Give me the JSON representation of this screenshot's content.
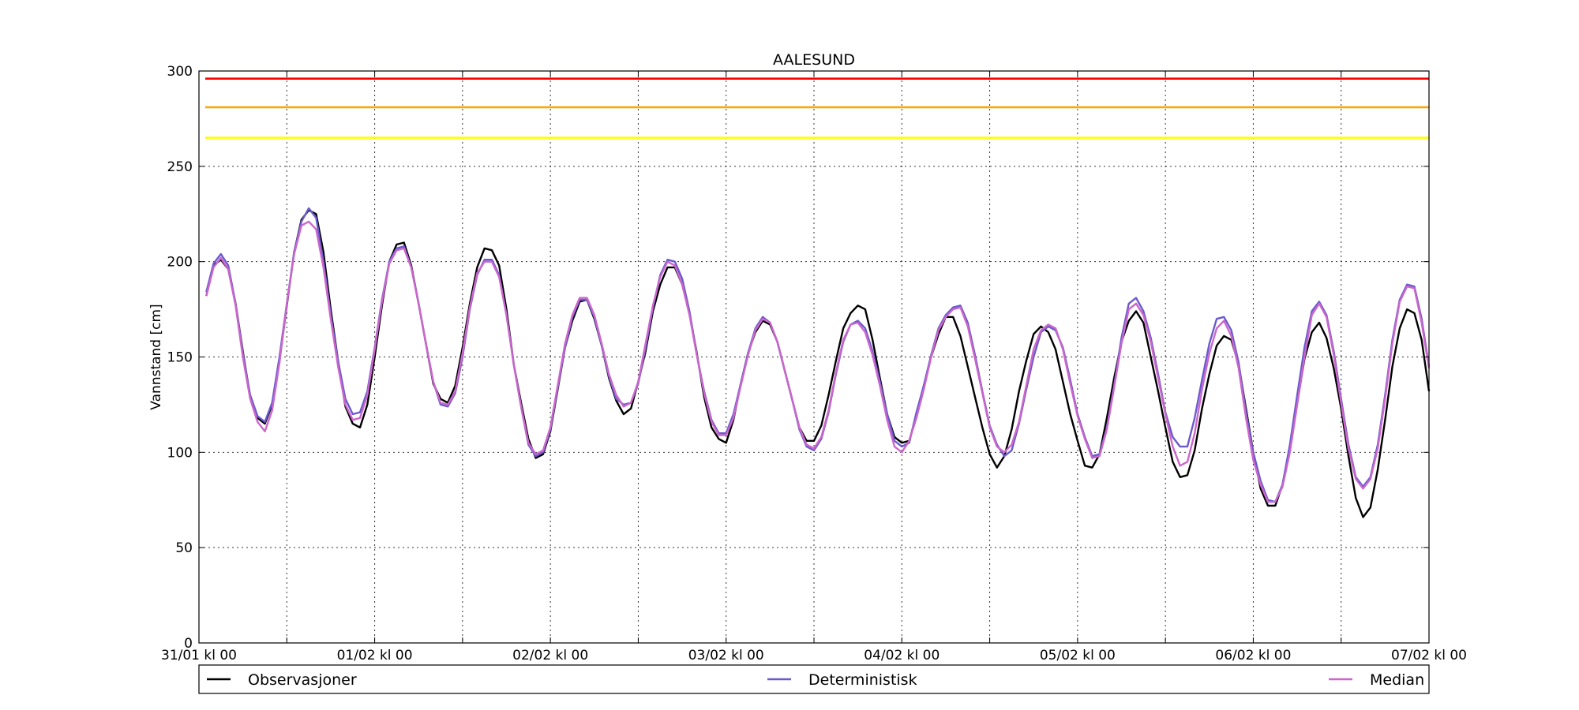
{
  "chart_data": {
    "type": "line",
    "title": "AALESUND",
    "xlabel": "",
    "ylabel": "Vannstand [cm]",
    "ylim": [
      0,
      300
    ],
    "yticks": [
      0,
      50,
      100,
      150,
      200,
      250,
      300
    ],
    "xlim_hours": [
      0,
      168
    ],
    "xticks": [
      {
        "hour": 0,
        "label": "31/01 kl 00"
      },
      {
        "hour": 24,
        "label": "01/02 kl 00"
      },
      {
        "hour": 48,
        "label": "02/02 kl 00"
      },
      {
        "hour": 72,
        "label": "03/02 kl 00"
      },
      {
        "hour": 96,
        "label": "04/02 kl 00"
      },
      {
        "hour": 120,
        "label": "05/02 kl 00"
      },
      {
        "hour": 144,
        "label": "06/02 kl 00"
      },
      {
        "hour": 168,
        "label": "07/02 kl 00"
      }
    ],
    "grid": true,
    "legend_position": "bottom",
    "thresholds": [
      {
        "y": 296,
        "color": "#ff0000"
      },
      {
        "y": 281,
        "color": "#ffa500"
      },
      {
        "y": 265,
        "color": "#ffff00"
      }
    ],
    "series": [
      {
        "name": "Observasjoner",
        "color": "#000000",
        "hours": [
          1,
          2,
          3,
          4,
          5,
          6,
          7,
          8,
          9,
          10,
          11,
          12,
          13,
          14,
          15,
          16,
          17,
          18,
          19,
          20,
          21,
          22,
          23,
          24,
          25,
          26,
          27,
          28,
          29,
          30,
          31,
          32,
          33,
          34,
          35,
          36,
          37,
          38,
          39,
          40,
          41,
          42,
          43,
          44,
          45,
          46,
          47,
          48,
          49,
          50,
          51,
          52,
          53,
          54,
          55,
          56,
          57,
          58,
          59,
          60,
          61,
          62,
          63,
          64,
          65,
          66,
          67,
          68,
          69,
          70,
          71,
          72,
          73,
          74,
          75,
          76,
          77,
          78,
          79,
          80,
          81,
          82,
          83,
          84,
          85,
          86,
          87,
          88,
          89,
          90,
          91,
          92,
          93,
          94,
          95,
          96,
          97,
          98,
          99,
          100,
          101,
          102,
          103,
          104,
          105,
          106,
          107,
          108,
          109,
          110,
          111,
          112,
          113,
          114,
          115,
          116,
          117,
          118,
          119,
          120,
          121,
          122,
          123,
          124,
          125,
          126,
          127,
          128,
          129,
          130,
          131,
          132,
          133,
          134,
          135,
          136,
          137,
          138,
          139,
          140,
          141,
          142,
          143,
          144,
          145,
          146,
          147,
          148,
          149,
          150,
          151,
          152,
          153,
          154,
          155,
          156,
          157,
          158,
          159,
          160,
          161,
          162,
          163,
          164,
          165,
          166,
          167,
          168
        ],
        "values": [
          182,
          198,
          201,
          196,
          178,
          153,
          129,
          118,
          115,
          125,
          148,
          177,
          205,
          222,
          227,
          225,
          205,
          175,
          148,
          124,
          115,
          113,
          125,
          150,
          177,
          200,
          209,
          210,
          198,
          178,
          157,
          136,
          128,
          126,
          135,
          155,
          178,
          197,
          207,
          206,
          198,
          175,
          146,
          126,
          107,
          97,
          99,
          111,
          133,
          155,
          169,
          179,
          180,
          170,
          156,
          139,
          127,
          120,
          123,
          137,
          153,
          174,
          188,
          197,
          197,
          188,
          173,
          152,
          129,
          113,
          107,
          105,
          117,
          136,
          152,
          163,
          169,
          167,
          158,
          143,
          128,
          113,
          106,
          106,
          114,
          130,
          148,
          165,
          173,
          177,
          175,
          159,
          139,
          120,
          108,
          105,
          106,
          119,
          135,
          150,
          162,
          171,
          171,
          161,
          145,
          129,
          113,
          99,
          92,
          98,
          112,
          132,
          148,
          162,
          166,
          163,
          154,
          137,
          120,
          106,
          93,
          92,
          99,
          118,
          139,
          158,
          169,
          174,
          168,
          150,
          132,
          113,
          95,
          87,
          88,
          101,
          123,
          141,
          156,
          161,
          159,
          146,
          123,
          100,
          81,
          72,
          72,
          83,
          103,
          126,
          149,
          163,
          168,
          160,
          144,
          123,
          98,
          76,
          66,
          71,
          91,
          117,
          145,
          165,
          175,
          173,
          159,
          132
        ]
      },
      {
        "name": "Deterministisk",
        "color": "#6a5acd",
        "hours": [
          1,
          2,
          3,
          4,
          5,
          6,
          7,
          8,
          9,
          10,
          11,
          12,
          13,
          14,
          15,
          16,
          17,
          18,
          19,
          20,
          21,
          22,
          23,
          24,
          25,
          26,
          27,
          28,
          29,
          30,
          31,
          32,
          33,
          34,
          35,
          36,
          37,
          38,
          39,
          40,
          41,
          42,
          43,
          44,
          45,
          46,
          47,
          48,
          49,
          50,
          51,
          52,
          53,
          54,
          55,
          56,
          57,
          58,
          59,
          60,
          61,
          62,
          63,
          64,
          65,
          66,
          67,
          68,
          69,
          70,
          71,
          72,
          73,
          74,
          75,
          76,
          77,
          78,
          79,
          80,
          81,
          82,
          83,
          84,
          85,
          86,
          87,
          88,
          89,
          90,
          91,
          92,
          93,
          94,
          95,
          96,
          97,
          98,
          99,
          100,
          101,
          102,
          103,
          104,
          105,
          106,
          107,
          108,
          109,
          110,
          111,
          112,
          113,
          114,
          115,
          116,
          117,
          118,
          119,
          120,
          121,
          122,
          123,
          124,
          125,
          126,
          127,
          128,
          129,
          130,
          131,
          132,
          133,
          134,
          135,
          136,
          137,
          138,
          139,
          140,
          141,
          142,
          143,
          144,
          145,
          146,
          147,
          148,
          149,
          150,
          151,
          152,
          153,
          154,
          155,
          156,
          157,
          158,
          159,
          160,
          161,
          162,
          163,
          164,
          165,
          166,
          167,
          168
        ],
        "values": [
          184,
          199,
          204,
          198,
          178,
          152,
          130,
          119,
          116,
          126,
          150,
          178,
          205,
          221,
          228,
          223,
          200,
          172,
          148,
          128,
          120,
          121,
          132,
          155,
          180,
          200,
          207,
          208,
          197,
          178,
          157,
          137,
          125,
          124,
          131,
          150,
          175,
          193,
          201,
          201,
          193,
          172,
          146,
          124,
          104,
          98,
          100,
          112,
          134,
          155,
          171,
          180,
          180,
          171,
          156,
          140,
          128,
          125,
          126,
          136,
          155,
          176,
          193,
          201,
          200,
          191,
          174,
          151,
          132,
          117,
          110,
          110,
          120,
          136,
          152,
          165,
          171,
          168,
          158,
          143,
          128,
          112,
          103,
          101,
          107,
          121,
          141,
          158,
          167,
          169,
          165,
          153,
          137,
          120,
          106,
          103,
          105,
          121,
          135,
          151,
          165,
          172,
          176,
          177,
          168,
          151,
          132,
          114,
          104,
          98,
          101,
          115,
          133,
          150,
          163,
          166,
          164,
          155,
          138,
          120,
          108,
          98,
          99,
          113,
          135,
          160,
          178,
          181,
          174,
          160,
          141,
          121,
          108,
          103,
          103,
          118,
          138,
          157,
          170,
          171,
          164,
          147,
          121,
          100,
          85,
          75,
          74,
          83,
          104,
          130,
          155,
          174,
          179,
          172,
          153,
          128,
          104,
          87,
          82,
          87,
          104,
          130,
          159,
          180,
          188,
          187,
          170,
          145
        ]
      },
      {
        "name": "Median",
        "color": "#cc66cc",
        "hours": [
          1,
          2,
          3,
          4,
          5,
          6,
          7,
          8,
          9,
          10,
          11,
          12,
          13,
          14,
          15,
          16,
          17,
          18,
          19,
          20,
          21,
          22,
          23,
          24,
          25,
          26,
          27,
          28,
          29,
          30,
          31,
          32,
          33,
          34,
          35,
          36,
          37,
          38,
          39,
          40,
          41,
          42,
          43,
          44,
          45,
          46,
          47,
          48,
          49,
          50,
          51,
          52,
          53,
          54,
          55,
          56,
          57,
          58,
          59,
          60,
          61,
          62,
          63,
          64,
          65,
          66,
          67,
          68,
          69,
          70,
          71,
          72,
          73,
          74,
          75,
          76,
          77,
          78,
          79,
          80,
          81,
          82,
          83,
          84,
          85,
          86,
          87,
          88,
          89,
          90,
          91,
          92,
          93,
          94,
          95,
          96,
          97,
          98,
          99,
          100,
          101,
          102,
          103,
          104,
          105,
          106,
          107,
          108,
          109,
          110,
          111,
          112,
          113,
          114,
          115,
          116,
          117,
          118,
          119,
          120,
          121,
          122,
          123,
          124,
          125,
          126,
          127,
          128,
          129,
          130,
          131,
          132,
          133,
          134,
          135,
          136,
          137,
          138,
          139,
          140,
          141,
          142,
          143,
          144,
          145,
          146,
          147,
          148,
          149,
          150,
          151,
          152,
          153,
          154,
          155,
          156,
          157,
          158,
          159,
          160,
          161,
          162,
          163,
          164,
          165,
          166,
          167,
          168
        ],
        "values": [
          182,
          197,
          202,
          196,
          177,
          150,
          128,
          116,
          111,
          122,
          147,
          178,
          204,
          219,
          221,
          217,
          197,
          170,
          145,
          125,
          117,
          118,
          130,
          154,
          179,
          199,
          206,
          207,
          197,
          178,
          157,
          137,
          126,
          125,
          132,
          152,
          176,
          194,
          200,
          200,
          192,
          172,
          146,
          124,
          105,
          99,
          101,
          113,
          135,
          157,
          172,
          181,
          181,
          172,
          157,
          141,
          130,
          124,
          126,
          137,
          157,
          177,
          192,
          200,
          198,
          188,
          172,
          151,
          131,
          116,
          109,
          109,
          118,
          135,
          151,
          164,
          170,
          168,
          158,
          143,
          128,
          113,
          104,
          102,
          108,
          122,
          142,
          159,
          167,
          168,
          163,
          151,
          135,
          117,
          103,
          100,
          106,
          118,
          133,
          150,
          164,
          171,
          175,
          176,
          166,
          149,
          131,
          113,
          103,
          100,
          104,
          116,
          135,
          154,
          164,
          167,
          165,
          154,
          136,
          119,
          107,
          97,
          98,
          112,
          134,
          157,
          175,
          178,
          172,
          158,
          139,
          120,
          103,
          93,
          95,
          110,
          133,
          152,
          165,
          169,
          161,
          144,
          118,
          96,
          83,
          74,
          74,
          82,
          100,
          125,
          150,
          172,
          178,
          171,
          151,
          126,
          102,
          86,
          81,
          86,
          102,
          128,
          157,
          179,
          187,
          186,
          168,
          144
        ]
      }
    ]
  }
}
